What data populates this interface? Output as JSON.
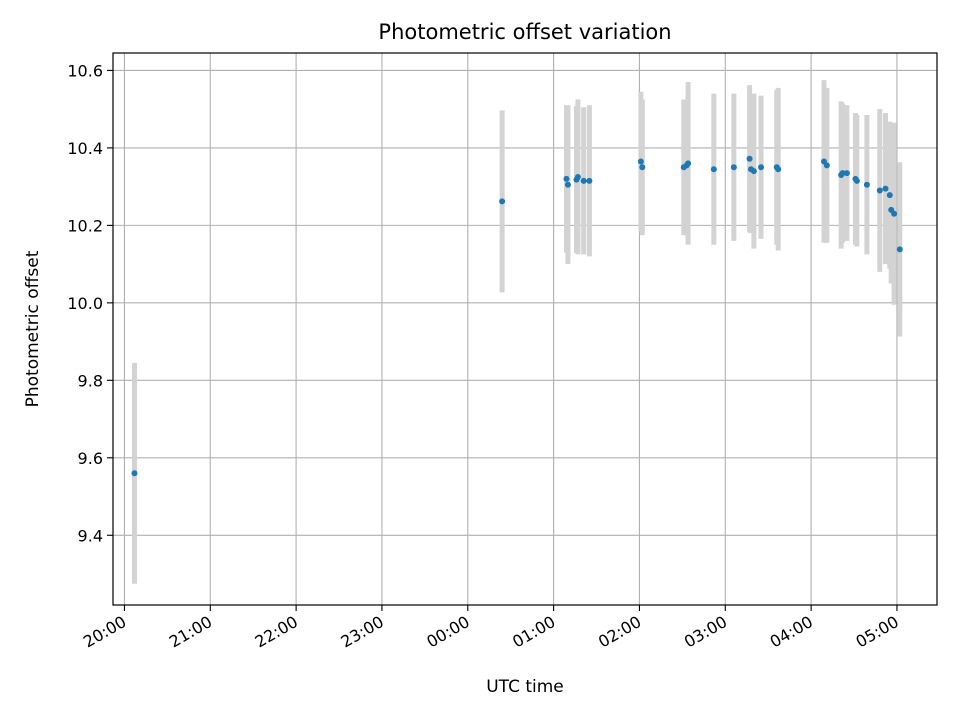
{
  "chart_data": {
    "type": "scatter",
    "title": "Photometric offset variation",
    "xlabel": "UTC time",
    "ylabel": "Photometric offset",
    "x_unit": "UTC time of day (the axis crosses midnight after 23:00)",
    "xlim": [
      "19:52",
      "05:28"
    ],
    "ylim": [
      9.22,
      10.645
    ],
    "x_ticks": [
      "20:00",
      "21:00",
      "22:00",
      "23:00",
      "00:00",
      "01:00",
      "02:00",
      "03:00",
      "04:00",
      "05:00"
    ],
    "y_ticks": [
      "9.4",
      "9.6",
      "9.8",
      "10.0",
      "10.2",
      "10.4",
      "10.6"
    ],
    "grid": true,
    "colors": {
      "marker": "#1f77b4",
      "errorbar": "#d3d3d3",
      "grid": "#b0b0b0"
    },
    "points": [
      {
        "x": "20:07",
        "y": 9.56,
        "err": 0.285
      },
      {
        "x": "00:24",
        "y": 10.262,
        "err": 0.235
      },
      {
        "x": "01:09",
        "y": 10.32,
        "err": 0.19
      },
      {
        "x": "01:10",
        "y": 10.305,
        "err": 0.205
      },
      {
        "x": "01:16",
        "y": 10.318,
        "err": 0.19
      },
      {
        "x": "01:17",
        "y": 10.325,
        "err": 0.2
      },
      {
        "x": "01:21",
        "y": 10.315,
        "err": 0.19
      },
      {
        "x": "01:25",
        "y": 10.315,
        "err": 0.195
      },
      {
        "x": "02:01",
        "y": 10.365,
        "err": 0.18
      },
      {
        "x": "02:02",
        "y": 10.35,
        "err": 0.175
      },
      {
        "x": "02:31",
        "y": 10.35,
        "err": 0.175
      },
      {
        "x": "02:33",
        "y": 10.355,
        "err": 0.17
      },
      {
        "x": "02:34",
        "y": 10.36,
        "err": 0.21
      },
      {
        "x": "02:52",
        "y": 10.345,
        "err": 0.195
      },
      {
        "x": "03:06",
        "y": 10.35,
        "err": 0.19
      },
      {
        "x": "03:17",
        "y": 10.372,
        "err": 0.19
      },
      {
        "x": "03:18",
        "y": 10.345,
        "err": 0.165
      },
      {
        "x": "03:20",
        "y": 10.34,
        "err": 0.2
      },
      {
        "x": "03:25",
        "y": 10.35,
        "err": 0.185
      },
      {
        "x": "03:36",
        "y": 10.35,
        "err": 0.2
      },
      {
        "x": "03:37",
        "y": 10.345,
        "err": 0.21
      },
      {
        "x": "04:09",
        "y": 10.365,
        "err": 0.21
      },
      {
        "x": "04:11",
        "y": 10.355,
        "err": 0.2
      },
      {
        "x": "04:21",
        "y": 10.33,
        "err": 0.19
      },
      {
        "x": "04:22",
        "y": 10.335,
        "err": 0.18
      },
      {
        "x": "04:25",
        "y": 10.335,
        "err": 0.175
      },
      {
        "x": "04:31",
        "y": 10.32,
        "err": 0.17
      },
      {
        "x": "04:32",
        "y": 10.315,
        "err": 0.17
      },
      {
        "x": "04:39",
        "y": 10.305,
        "err": 0.18
      },
      {
        "x": "04:48",
        "y": 10.29,
        "err": 0.21
      },
      {
        "x": "04:52",
        "y": 10.295,
        "err": 0.195
      },
      {
        "x": "04:55",
        "y": 10.278,
        "err": 0.19
      },
      {
        "x": "04:56",
        "y": 10.24,
        "err": 0.19
      },
      {
        "x": "04:58",
        "y": 10.23,
        "err": 0.235
      },
      {
        "x": "05:02",
        "y": 10.138,
        "err": 0.225
      }
    ]
  }
}
